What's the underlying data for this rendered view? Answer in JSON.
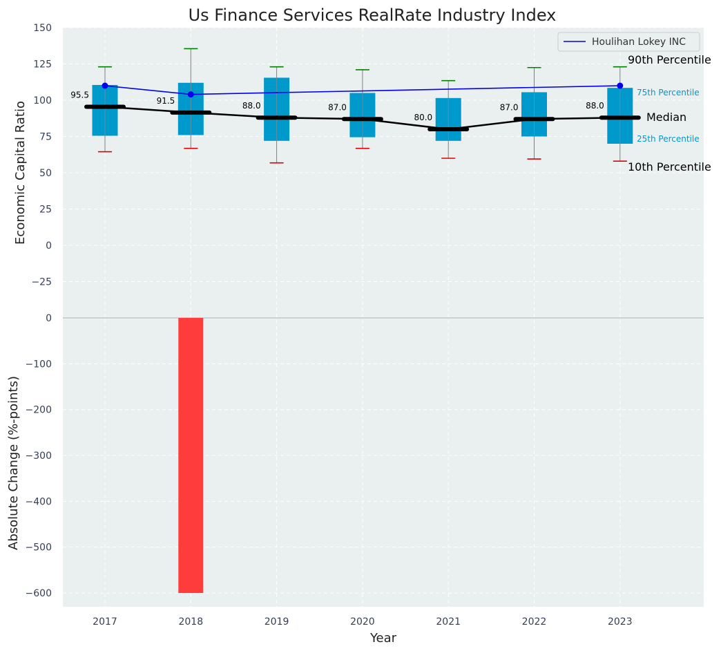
{
  "chart_data": {
    "type": "box",
    "title": "Us Finance Services RealRate Industry Index",
    "xlabel": "Year",
    "categories": [
      "2017",
      "2018",
      "2019",
      "2020",
      "2021",
      "2022",
      "2023"
    ],
    "top_panel": {
      "ylabel": "Economic Capital Ratio",
      "ylim": [
        -50,
        150
      ],
      "yticks": [
        150,
        125,
        100,
        75,
        50,
        25,
        0,
        -25
      ],
      "ytick_labels": [
        "150",
        "125",
        "100",
        "75",
        "50",
        "25",
        "0",
        "−25"
      ],
      "percentile_10": [
        64.5,
        66.8,
        56.8,
        66.8,
        60.0,
        59.5,
        58.0
      ],
      "percentile_25": [
        75.5,
        76.0,
        72.0,
        74.5,
        72.0,
        75.0,
        70.0
      ],
      "median": [
        95.5,
        91.5,
        88.0,
        87.0,
        80.0,
        87.0,
        88.0
      ],
      "percentile_75": [
        110.5,
        112.0,
        115.5,
        105.0,
        101.5,
        105.5,
        108.5
      ],
      "percentile_90": [
        123.0,
        135.5,
        123.0,
        121.0,
        113.5,
        122.5,
        123.0
      ],
      "median_labels": [
        "95.5",
        "91.5",
        "88.0",
        "87.0",
        "80.0",
        "87.0",
        "88.0"
      ],
      "company_series": {
        "name": "Houlihan Lokey INC",
        "values": [
          110.0,
          104.0,
          null,
          null,
          null,
          null,
          110.0
        ],
        "color": "#0000ee"
      },
      "box_color": "#0099cc",
      "median_color": "#000000",
      "p90_color": "#008000",
      "p10_color": "#dd0000",
      "annotations": {
        "p90": "90th Percentile",
        "p75": "75th Percentile",
        "median": "Median",
        "p25": "25th Percentile",
        "p10": "10th Percentile"
      },
      "legend_position": "top-right"
    },
    "bottom_panel": {
      "type": "bar",
      "ylabel": "Absolute Change (%-points)",
      "ylim": [
        -630,
        0
      ],
      "yticks": [
        0,
        -100,
        -200,
        -300,
        -400,
        -500,
        -600
      ],
      "ytick_labels": [
        "0",
        "−100",
        "−200",
        "−300",
        "−400",
        "−500",
        "−600"
      ],
      "values": [
        null,
        -600,
        null,
        null,
        null,
        null,
        null
      ],
      "bar_color": "#ff3c3c"
    },
    "grid": true,
    "background": "#eaeff0"
  }
}
